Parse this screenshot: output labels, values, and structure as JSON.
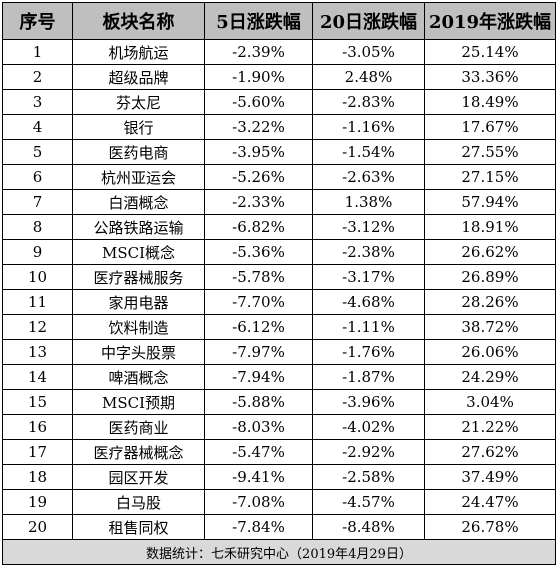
{
  "table": {
    "headers": [
      "序号",
      "板块名称",
      "5日涨跌幅",
      "20日涨跌幅",
      "2019年涨跌幅"
    ],
    "rows": [
      [
        "1",
        "机场航运",
        "-2.39%",
        "-3.05%",
        "25.14%"
      ],
      [
        "2",
        "超级品牌",
        "-1.90%",
        "2.48%",
        "33.36%"
      ],
      [
        "3",
        "芬太尼",
        "-5.60%",
        "-2.83%",
        "18.49%"
      ],
      [
        "4",
        "银行",
        "-3.22%",
        "-1.16%",
        "17.67%"
      ],
      [
        "5",
        "医药电商",
        "-3.95%",
        "-1.54%",
        "27.55%"
      ],
      [
        "6",
        "杭州亚运会",
        "-5.26%",
        "-2.63%",
        "27.15%"
      ],
      [
        "7",
        "白酒概念",
        "-2.33%",
        "1.38%",
        "57.94%"
      ],
      [
        "8",
        "公路铁路运输",
        "-6.82%",
        "-3.12%",
        "18.91%"
      ],
      [
        "9",
        "MSCI概念",
        "-5.36%",
        "-2.38%",
        "26.62%"
      ],
      [
        "10",
        "医疗器械服务",
        "-5.78%",
        "-3.17%",
        "26.89%"
      ],
      [
        "11",
        "家用电器",
        "-7.70%",
        "-4.68%",
        "28.26%"
      ],
      [
        "12",
        "饮料制造",
        "-6.12%",
        "-1.11%",
        "38.72%"
      ],
      [
        "13",
        "中字头股票",
        "-7.97%",
        "-1.76%",
        "26.06%"
      ],
      [
        "14",
        "啤酒概念",
        "-7.94%",
        "-1.87%",
        "24.29%"
      ],
      [
        "15",
        "MSCI预期",
        "-5.88%",
        "-3.96%",
        "3.04%"
      ],
      [
        "16",
        "医药商业",
        "-8.03%",
        "-4.02%",
        "21.22%"
      ],
      [
        "17",
        "医疗器械概念",
        "-5.47%",
        "-2.92%",
        "27.62%"
      ],
      [
        "18",
        "园区开发",
        "-9.41%",
        "-2.58%",
        "37.49%"
      ],
      [
        "19",
        "白马股",
        "-7.08%",
        "-4.57%",
        "24.47%"
      ],
      [
        "20",
        "租售同权",
        "-7.84%",
        "-8.48%",
        "26.78%"
      ]
    ],
    "footer": "数据统计：七禾研究中心（2019年4月29日）"
  },
  "colors": {
    "header_bg": "#bfbfbf",
    "footer_bg": "#d9d9d9",
    "border": "#000000"
  }
}
